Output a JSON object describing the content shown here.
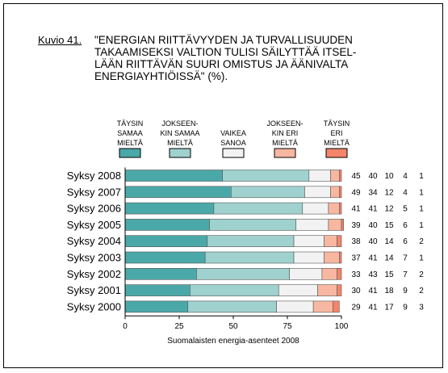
{
  "figure_label": "Kuvio 41.",
  "title_lines": [
    "\"ENERGIAN RIITTÄVYYDEN JA TURVALLISUUDEN",
    "TAKAAMISEKSI VALTION TULISI SÄILYTTÄÄ ITSEL-",
    "LÄÄN RIITTÄVÄN SUURI OMISTUS JA ÄÄNIVALTA",
    "ENERGIAYHTIÖISSÄ\" (%)."
  ],
  "source": "Suomalaisten energia-asenteet 2008",
  "colors": [
    "#4aa9a8",
    "#9fd1cf",
    "#f2f2f2",
    "#f8b7a0",
    "#f4846a"
  ],
  "chart_data": {
    "type": "bar",
    "orientation": "horizontal",
    "stacked": true,
    "categories": [
      "Syksy 2008",
      "Syksy 2007",
      "Syksy 2006",
      "Syksy 2005",
      "Syksy 2004",
      "Syksy 2003",
      "Syksy 2002",
      "Syksy 2001",
      "Syksy 2000"
    ],
    "series": [
      {
        "name": "TÄYSIN SAMAA MIELTÄ",
        "legend_lines": [
          "TÄYSIN",
          "SAMAA",
          "MIELTÄ"
        ],
        "values": [
          45,
          49,
          41,
          39,
          38,
          37,
          33,
          30,
          29
        ]
      },
      {
        "name": "JOKSEENKIN SAMAA MIELTÄ",
        "legend_lines": [
          "JOKSEEN-",
          "KIN SAMAA",
          "MIELTÄ"
        ],
        "values": [
          40,
          34,
          41,
          40,
          40,
          41,
          43,
          41,
          41
        ]
      },
      {
        "name": "VAIKEA SANOA",
        "legend_lines": [
          "VAIKEA",
          "SANOA"
        ],
        "values": [
          10,
          12,
          12,
          15,
          14,
          14,
          15,
          18,
          17
        ]
      },
      {
        "name": "JOKSEENKIN ERI MIELTÄ",
        "legend_lines": [
          "JOKSEEN-",
          "KIN ERI",
          "MIELTÄ"
        ],
        "values": [
          4,
          4,
          5,
          6,
          6,
          7,
          7,
          9,
          9
        ]
      },
      {
        "name": "TÄYSIN ERI MIELTÄ",
        "legend_lines": [
          "TÄYSIN",
          "ERI",
          "MIELTÄ"
        ],
        "values": [
          1,
          1,
          1,
          1,
          2,
          1,
          2,
          2,
          3
        ]
      }
    ],
    "xlim": [
      0,
      100
    ],
    "xticks": [
      0,
      25,
      50,
      75,
      100
    ],
    "grid": false,
    "legend_position": "top"
  }
}
